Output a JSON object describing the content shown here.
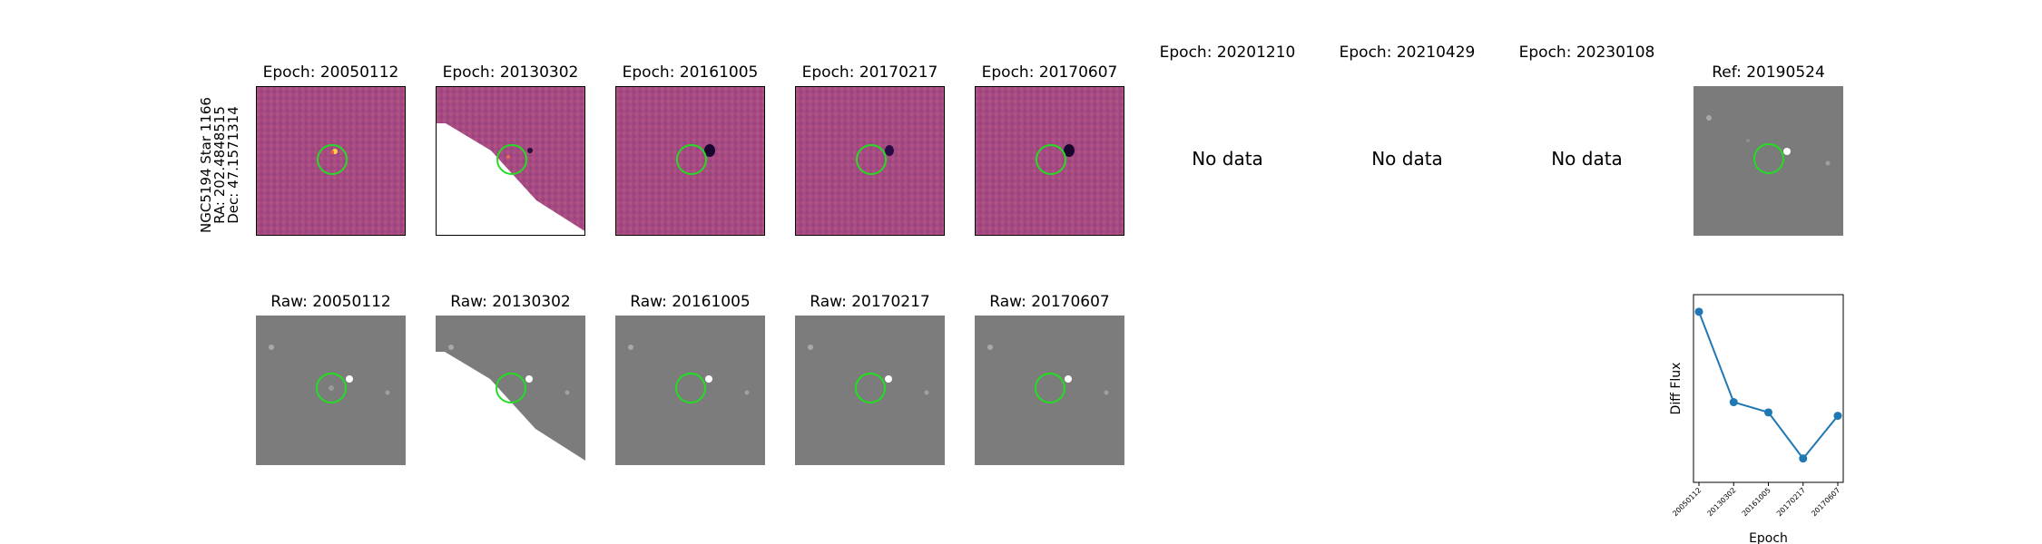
{
  "target": {
    "name": "NGC5194 Star 1166",
    "ra": "RA: 202.4848515",
    "dec": "Dec: 47.1571314"
  },
  "diff_titles": [
    "Epoch: 20050112",
    "Epoch: 20130302",
    "Epoch: 20161005",
    "Epoch: 20170217",
    "Epoch: 20170607"
  ],
  "nodata_titles": [
    "Epoch: 20201210",
    "Epoch: 20210429",
    "Epoch: 20230108"
  ],
  "nodata_text": "No data",
  "ref_title": "Ref: 20190524",
  "raw_titles": [
    "Raw: 20050112",
    "Raw: 20130302",
    "Raw: 20161005",
    "Raw: 20170217",
    "Raw: 20170607"
  ],
  "colors": {
    "circle": "#22dd22",
    "diff_bg": "#a84a82",
    "raw_bg": "#7c7c7c",
    "line": "#1f77b4"
  },
  "chart_data": {
    "type": "line",
    "categories": [
      "20050112",
      "20130302",
      "20161005",
      "20170217",
      "20170607"
    ],
    "values": [
      1.0,
      0.47,
      0.41,
      0.14,
      0.39
    ],
    "xlabel": "Epoch",
    "ylabel": "Diff Flux",
    "ylim": [
      0.0,
      1.1
    ],
    "y_ticks_shown": false,
    "grid": false
  }
}
